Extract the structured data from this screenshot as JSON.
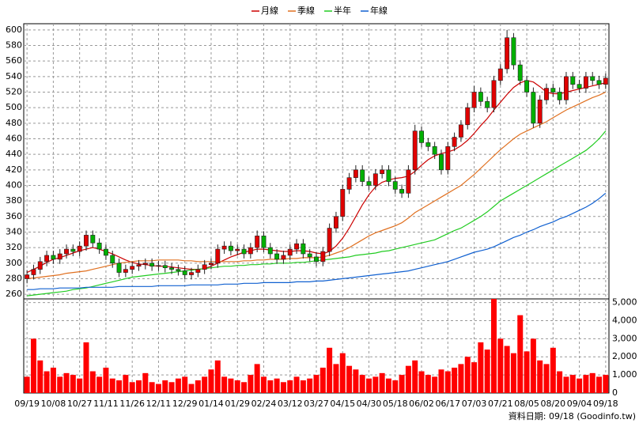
{
  "chart_data": {
    "type": "candlestick",
    "source": "資料日期: 09/18 (Goodinfo.tw)",
    "grid": true,
    "up_color": "#e00000",
    "down_color": "#00b000",
    "xlim": [
      0,
      88
    ],
    "xticks": [
      {
        "value": 0,
        "label": "09/19"
      },
      {
        "value": 4,
        "label": "10/08"
      },
      {
        "value": 8,
        "label": "10/27"
      },
      {
        "value": 12,
        "label": "11/11"
      },
      {
        "value": 16,
        "label": "11/26"
      },
      {
        "value": 20,
        "label": "12/11"
      },
      {
        "value": 24,
        "label": "12/29"
      },
      {
        "value": 28,
        "label": "01/14"
      },
      {
        "value": 32,
        "label": "01/29"
      },
      {
        "value": 36,
        "label": "02/24"
      },
      {
        "value": 40,
        "label": "03/12"
      },
      {
        "value": 44,
        "label": "03/27"
      },
      {
        "value": 48,
        "label": "04/15"
      },
      {
        "value": 52,
        "label": "04/30"
      },
      {
        "value": 56,
        "label": "05/18"
      },
      {
        "value": 60,
        "label": "06/02"
      },
      {
        "value": 64,
        "label": "06/17"
      },
      {
        "value": 68,
        "label": "07/03"
      },
      {
        "value": 72,
        "label": "07/21"
      },
      {
        "value": 76,
        "label": "08/05"
      },
      {
        "value": 80,
        "label": "08/20"
      },
      {
        "value": 84,
        "label": "09/04"
      },
      {
        "value": 88,
        "label": "09/18"
      }
    ],
    "ylim": [
      254,
      608
    ],
    "yticks": [
      260,
      280,
      300,
      320,
      340,
      360,
      380,
      400,
      420,
      440,
      460,
      480,
      500,
      520,
      540,
      560,
      580,
      600
    ],
    "open": [
      280,
      285,
      292,
      302,
      310,
      305,
      312,
      318,
      315,
      322,
      336,
      326,
      318,
      310,
      300,
      288,
      292,
      296,
      298,
      300,
      296,
      297,
      294,
      292,
      290,
      285,
      288,
      292,
      298,
      300,
      318,
      322,
      316,
      318,
      312,
      320,
      335,
      320,
      312,
      305,
      310,
      318,
      325,
      312,
      308,
      302,
      315,
      345,
      360,
      395,
      410,
      420,
      405,
      400,
      415,
      420,
      405,
      395,
      390,
      420,
      470,
      455,
      450,
      440,
      420,
      450,
      462,
      478,
      500,
      520,
      508,
      500,
      535,
      550,
      590,
      555,
      535,
      520,
      480,
      510,
      525,
      520,
      510,
      540,
      530,
      525,
      540,
      535,
      530
    ],
    "high": [
      291,
      298,
      308,
      316,
      316,
      318,
      324,
      324,
      328,
      342,
      342,
      332,
      324,
      316,
      306,
      298,
      302,
      304,
      306,
      306,
      303,
      303,
      300,
      298,
      296,
      294,
      298,
      304,
      306,
      324,
      328,
      328,
      324,
      324,
      326,
      342,
      341,
      326,
      318,
      316,
      324,
      331,
      331,
      318,
      314,
      321,
      351,
      366,
      401,
      416,
      426,
      426,
      411,
      421,
      426,
      426,
      411,
      401,
      426,
      478,
      476,
      461,
      456,
      446,
      456,
      468,
      484,
      506,
      528,
      526,
      514,
      541,
      556,
      600,
      596,
      561,
      541,
      526,
      516,
      531,
      531,
      526,
      546,
      546,
      536,
      546,
      546,
      541,
      544
    ],
    "low": [
      274,
      279,
      286,
      296,
      299,
      299,
      306,
      309,
      309,
      316,
      320,
      312,
      304,
      294,
      282,
      282,
      286,
      290,
      292,
      290,
      290,
      288,
      286,
      284,
      279,
      279,
      282,
      286,
      292,
      294,
      312,
      310,
      310,
      306,
      306,
      314,
      314,
      306,
      299,
      299,
      304,
      312,
      306,
      302,
      296,
      296,
      309,
      339,
      354,
      389,
      404,
      399,
      394,
      394,
      409,
      399,
      389,
      384,
      384,
      414,
      449,
      444,
      434,
      414,
      414,
      444,
      456,
      472,
      494,
      502,
      494,
      494,
      529,
      544,
      549,
      529,
      514,
      474,
      474,
      504,
      514,
      504,
      504,
      524,
      519,
      519,
      529,
      524,
      524
    ],
    "close": [
      285,
      292,
      302,
      310,
      305,
      312,
      318,
      315,
      322,
      336,
      326,
      318,
      310,
      300,
      288,
      292,
      296,
      298,
      300,
      296,
      297,
      294,
      292,
      290,
      285,
      288,
      292,
      298,
      300,
      318,
      322,
      316,
      318,
      312,
      320,
      335,
      320,
      312,
      305,
      310,
      318,
      325,
      312,
      308,
      302,
      315,
      345,
      360,
      395,
      410,
      420,
      405,
      400,
      415,
      420,
      405,
      395,
      390,
      420,
      470,
      455,
      450,
      440,
      420,
      450,
      462,
      478,
      500,
      520,
      508,
      500,
      535,
      550,
      590,
      555,
      535,
      520,
      480,
      510,
      525,
      520,
      510,
      540,
      530,
      525,
      540,
      535,
      530,
      538
    ],
    "series": [
      {
        "name": "月線",
        "color": "#cc0000",
        "values": [
          288,
          292,
          296,
          301,
          305,
          307,
          310,
          313,
          316,
          318,
          320,
          318,
          315,
          312,
          308,
          304,
          301,
          299,
          298,
          297,
          296,
          296,
          295,
          294,
          293,
          292,
          292,
          293,
          296,
          300,
          304,
          308,
          311,
          314,
          316,
          318,
          318,
          317,
          316,
          315,
          315,
          316,
          316,
          315,
          313,
          312,
          315,
          322,
          332,
          345,
          360,
          375,
          388,
          398,
          404,
          407,
          409,
          410,
          412,
          418,
          426,
          433,
          438,
          441,
          443,
          446,
          451,
          458,
          467,
          477,
          486,
          497,
          507,
          517,
          526,
          532,
          535,
          533,
          527,
          520,
          518,
          518,
          520,
          522,
          524,
          526,
          528,
          530,
          532
        ]
      },
      {
        "name": "季線",
        "color": "#e07020",
        "values": [
          280,
          281,
          282,
          283,
          284,
          285,
          287,
          288,
          289,
          290,
          292,
          294,
          296,
          298,
          300,
          301,
          302,
          303,
          303,
          303,
          304,
          304,
          304,
          304,
          303,
          303,
          302,
          302,
          302,
          302,
          302,
          302,
          302,
          303,
          303,
          304,
          304,
          305,
          305,
          305,
          306,
          306,
          307,
          307,
          307,
          308,
          310,
          313,
          316,
          320,
          325,
          330,
          335,
          339,
          342,
          345,
          348,
          352,
          358,
          365,
          370,
          375,
          380,
          385,
          390,
          395,
          400,
          407,
          414,
          422,
          430,
          438,
          446,
          453,
          460,
          466,
          470,
          474,
          478,
          482,
          487,
          492,
          497,
          501,
          505,
          509,
          513,
          516,
          520
        ]
      },
      {
        "name": "半年",
        "color": "#22cc22",
        "values": [
          258,
          259,
          260,
          261,
          262,
          263,
          264,
          266,
          267,
          268,
          270,
          272,
          274,
          276,
          278,
          280,
          282,
          283,
          284,
          285,
          286,
          287,
          288,
          289,
          290,
          291,
          292,
          293,
          294,
          295,
          296,
          296,
          297,
          297,
          298,
          298,
          299,
          299,
          300,
          300,
          300,
          301,
          301,
          302,
          303,
          304,
          305,
          306,
          307,
          308,
          310,
          311,
          312,
          313,
          315,
          316,
          318,
          320,
          322,
          324,
          326,
          328,
          330,
          334,
          338,
          342,
          345,
          350,
          355,
          360,
          366,
          373,
          380,
          385,
          390,
          395,
          400,
          405,
          410,
          415,
          420,
          425,
          430,
          435,
          440,
          445,
          452,
          460,
          470
        ]
      },
      {
        "name": "年線",
        "color": "#1060d0",
        "values": [
          266,
          266,
          267,
          267,
          267,
          268,
          268,
          268,
          268,
          269,
          269,
          269,
          269,
          269,
          270,
          270,
          270,
          270,
          270,
          270,
          271,
          271,
          271,
          271,
          271,
          272,
          272,
          272,
          272,
          272,
          273,
          273,
          273,
          274,
          274,
          274,
          275,
          275,
          275,
          275,
          275,
          276,
          276,
          276,
          277,
          277,
          278,
          279,
          280,
          281,
          282,
          283,
          284,
          285,
          286,
          287,
          288,
          289,
          290,
          292,
          294,
          296,
          298,
          300,
          302,
          305,
          308,
          311,
          314,
          316,
          318,
          321,
          325,
          329,
          333,
          336,
          340,
          343,
          347,
          350,
          353,
          357,
          360,
          364,
          368,
          372,
          377,
          383,
          390
        ]
      }
    ],
    "volume": {
      "color": "#ff0000",
      "ylim": [
        0,
        5200
      ],
      "yticks": [
        0,
        {
          "value": 1000,
          "label": "1,000"
        },
        {
          "value": 2000,
          "label": "2,000"
        },
        {
          "value": 3000,
          "label": "3,000"
        },
        {
          "value": 4000,
          "label": "4,000"
        },
        {
          "value": 5000,
          "label": "5,000"
        }
      ],
      "values": [
        900,
        3000,
        1800,
        1200,
        1400,
        900,
        1100,
        1000,
        800,
        2800,
        1200,
        900,
        1400,
        800,
        700,
        1000,
        600,
        700,
        1100,
        600,
        500,
        700,
        600,
        800,
        900,
        500,
        700,
        900,
        1300,
        1800,
        900,
        800,
        700,
        600,
        1000,
        1600,
        900,
        700,
        800,
        600,
        700,
        900,
        700,
        800,
        1000,
        1400,
        2500,
        1600,
        2200,
        1500,
        1300,
        1000,
        800,
        900,
        1100,
        800,
        700,
        1000,
        1500,
        1800,
        1200,
        1000,
        900,
        1300,
        1200,
        1400,
        1600,
        2000,
        1700,
        2800,
        2400,
        5200,
        3000,
        2600,
        2200,
        4300,
        2300,
        3000,
        1800,
        1600,
        2500,
        1200,
        900,
        1000,
        800,
        1000,
        1100,
        900,
        1000
      ]
    }
  }
}
